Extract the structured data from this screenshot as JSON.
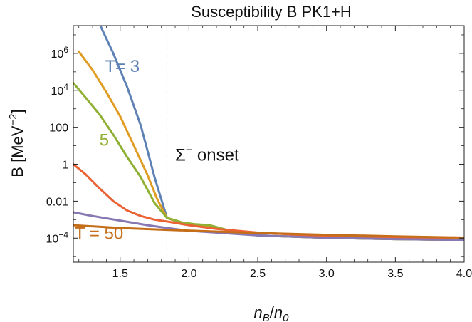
{
  "chart_data": {
    "type": "line",
    "title": "Susceptibility B PK1+H",
    "xlabel": {
      "main": "n",
      "sub1": "B",
      "sep": "/",
      "main2": "n",
      "sub2": "0"
    },
    "ylabel": {
      "main": "B [MeV",
      "sup": "−2",
      "end": "]"
    },
    "xlim": [
      1.16,
      4.0
    ],
    "ylim_log10": [
      -5.3,
      7.5
    ],
    "y_scale": "log",
    "x_ticks": [
      {
        "value": 1.5,
        "label": "1.5"
      },
      {
        "value": 2.0,
        "label": "2.0"
      },
      {
        "value": 2.5,
        "label": "2.5"
      },
      {
        "value": 3.0,
        "label": "3.0"
      },
      {
        "value": 3.5,
        "label": "3.5"
      },
      {
        "value": 4.0,
        "label": "4.0"
      }
    ],
    "y_ticks": [
      {
        "value_log10": 6,
        "base": "10",
        "exp": "6"
      },
      {
        "value_log10": 4,
        "base": "10",
        "exp": "4"
      },
      {
        "value_log10": 2,
        "base": "100",
        "exp": ""
      },
      {
        "value_log10": 0,
        "base": "1",
        "exp": ""
      },
      {
        "value_log10": -2,
        "base": "0.01",
        "exp": ""
      },
      {
        "value_log10": -4,
        "base": "10",
        "exp": "−4"
      }
    ],
    "vline": {
      "x": 1.84,
      "style": "dashed"
    },
    "series": [
      {
        "color": "#5e81b5",
        "x": [
          1.35,
          1.45,
          1.55,
          1.65,
          1.75,
          1.84,
          1.95,
          2.05,
          2.15,
          2.3,
          2.5,
          3.0,
          3.5,
          4.0
        ],
        "y_log10": [
          7.6,
          6.0,
          4.2,
          2.1,
          -0.7,
          -2.9,
          -3.2,
          -3.3,
          -3.35,
          -3.6,
          -3.85,
          -3.98,
          -4.05,
          -4.1
        ]
      },
      {
        "color": "#e19c24",
        "x": [
          1.2,
          1.3,
          1.4,
          1.5,
          1.6,
          1.7,
          1.77,
          1.84,
          1.95,
          2.05,
          2.15,
          2.3,
          2.5,
          3.0,
          3.5,
          4.0
        ],
        "y_log10": [
          6.1,
          5.1,
          3.9,
          2.6,
          1.0,
          -0.6,
          -1.9,
          -2.9,
          -3.2,
          -3.3,
          -3.35,
          -3.6,
          -3.85,
          -3.98,
          -4.05,
          -4.1
        ]
      },
      {
        "color": "#8fb032",
        "x": [
          1.16,
          1.25,
          1.35,
          1.45,
          1.55,
          1.65,
          1.75,
          1.84,
          1.95,
          2.05,
          2.15,
          2.3,
          2.5,
          3.0,
          3.5,
          4.0
        ],
        "y_log10": [
          4.4,
          3.6,
          2.7,
          1.6,
          0.4,
          -0.7,
          -2.1,
          -2.9,
          -3.15,
          -3.25,
          -3.3,
          -3.6,
          -3.85,
          -3.98,
          -4.05,
          -4.1
        ]
      },
      {
        "color": "#eb6235",
        "x": [
          1.16,
          1.25,
          1.35,
          1.45,
          1.55,
          1.65,
          1.75,
          1.84,
          2.0,
          2.2,
          2.5,
          3.0,
          3.5,
          4.0
        ],
        "y_log10": [
          0.0,
          -0.55,
          -1.3,
          -2.0,
          -2.5,
          -2.8,
          -3.0,
          -3.1,
          -3.3,
          -3.5,
          -3.7,
          -3.9,
          -4.0,
          -4.08
        ]
      },
      {
        "color": "#8778b3",
        "x": [
          1.16,
          1.3,
          1.5,
          1.7,
          1.84,
          2.0,
          2.3,
          2.5,
          3.0,
          3.5,
          4.0
        ],
        "y_log10": [
          -2.6,
          -2.8,
          -3.05,
          -3.3,
          -3.45,
          -3.6,
          -3.75,
          -3.85,
          -3.98,
          -4.05,
          -4.1
        ]
      },
      {
        "color": "#c56e1a",
        "x": [
          1.16,
          1.5,
          1.84,
          2.3,
          2.5,
          3.0,
          3.5,
          4.0
        ],
        "y_log10": [
          -3.3,
          -3.45,
          -3.55,
          -3.67,
          -3.72,
          -3.82,
          -3.9,
          -3.97
        ]
      }
    ],
    "annotations": [
      {
        "text": "T= 3",
        "color": "#5e81b5",
        "x": 1.39,
        "y_log10": 5.0
      },
      {
        "text": "5",
        "color": "#8fb032",
        "x": 1.35,
        "y_log10": 1.0
      },
      {
        "text": "T = 50",
        "color": "#c56e1a",
        "x": 1.17,
        "y_log10": -4.05
      },
      {
        "text_main": "Σ",
        "text_sup": "−",
        "text_end": " onset",
        "color": "#111111",
        "x": 1.9,
        "y_log10": 0.2
      }
    ]
  }
}
